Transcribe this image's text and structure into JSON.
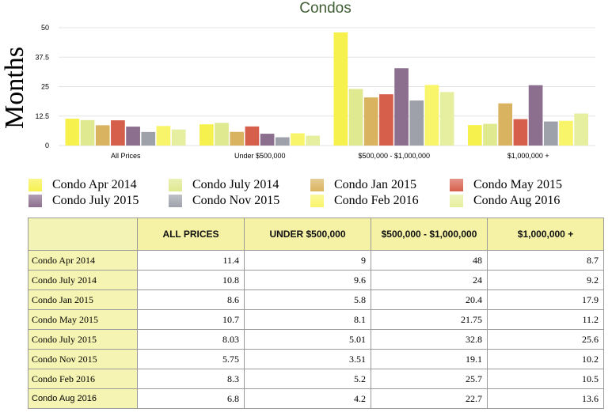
{
  "chart_data": {
    "type": "bar",
    "title": "Condos",
    "ylabel": "Months",
    "xlabel": "",
    "ylim": [
      0,
      50
    ],
    "yticks": [
      "0",
      "12.5",
      "25",
      "37.5",
      "50"
    ],
    "grid": true,
    "legend_position": "bottom",
    "categories": [
      "All Prices",
      "Under $500,000",
      "$500,000 - $1,000,000",
      "$1,000,000 +"
    ],
    "series": [
      {
        "name": "Condo Apr 2014",
        "color": "#f7f14e",
        "values": [
          11.4,
          9,
          48,
          8.7
        ]
      },
      {
        "name": "Condo July 2014",
        "color": "#dfe98f",
        "values": [
          10.8,
          9.6,
          24,
          9.2
        ]
      },
      {
        "name": "Condo Jan 2015",
        "color": "#d9b35f",
        "values": [
          8.6,
          5.8,
          20.4,
          17.9
        ]
      },
      {
        "name": "Condo May 2015",
        "color": "#d65f4c",
        "values": [
          10.7,
          8.1,
          21.75,
          11.2
        ]
      },
      {
        "name": "Condo July 2015",
        "color": "#8c6f8e",
        "values": [
          8.03,
          5.01,
          32.8,
          25.6
        ]
      },
      {
        "name": "Condo Nov 2015",
        "color": "#9ea1aa",
        "values": [
          5.75,
          3.51,
          19.1,
          10.2
        ]
      },
      {
        "name": "Condo Feb 2016",
        "color": "#f9f56a",
        "values": [
          8.3,
          5.2,
          25.7,
          10.5
        ]
      },
      {
        "name": "Condo Aug 2016",
        "color": "#e6efa0",
        "values": [
          6.8,
          4.2,
          22.7,
          13.6
        ]
      }
    ]
  },
  "table": {
    "headers": [
      "ALL PRICES",
      "UNDER $500,000",
      "$500,000 - $1,000,000",
      "$1,000,000 +"
    ],
    "rows": [
      {
        "label": "Condo Apr 2014",
        "cells": [
          "11.4",
          "9",
          "48",
          "8.7"
        ]
      },
      {
        "label": "Condo July 2014",
        "cells": [
          "10.8",
          "9.6",
          "24",
          "9.2"
        ]
      },
      {
        "label": "Condo Jan 2015",
        "cells": [
          "8.6",
          "5.8",
          "20.4",
          "17.9"
        ]
      },
      {
        "label": "Condo May 2015",
        "cells": [
          "10.7",
          "8.1",
          "21.75",
          "11.2"
        ]
      },
      {
        "label": "Condo July 2015",
        "cells": [
          "8.03",
          "5.01",
          "32.8",
          "25.6"
        ]
      },
      {
        "label": "Condo Nov 2015",
        "cells": [
          "5.75",
          "3.51",
          "19.1",
          "10.2"
        ]
      },
      {
        "label": "Condo Feb 2016",
        "cells": [
          "8.3",
          "5.2",
          "25.7",
          "10.5"
        ]
      },
      {
        "label": "Condo Aug 2016",
        "cells": [
          "6.8",
          "4.2",
          "22.7",
          "13.6"
        ]
      }
    ]
  }
}
